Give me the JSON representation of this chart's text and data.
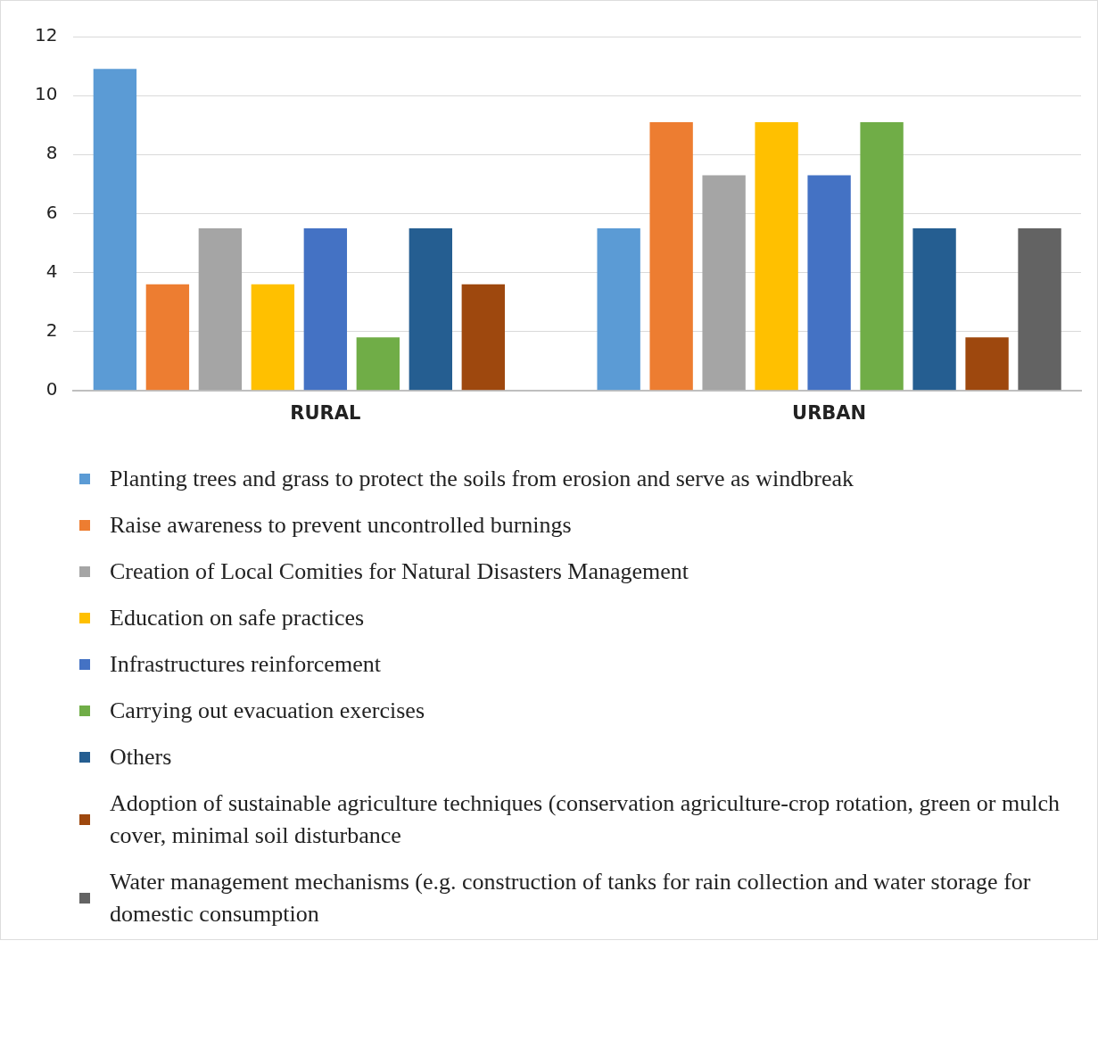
{
  "chart_data": {
    "type": "bar",
    "categories": [
      "RURAL",
      "URBAN"
    ],
    "series": [
      {
        "name": "Planting trees and grass to protect the soils from erosion and serve as windbreak",
        "color": "#5b9bd5",
        "values": [
          10.9,
          5.5
        ]
      },
      {
        "name": "Raise awareness to prevent uncontrolled burnings",
        "color": "#ed7d31",
        "values": [
          3.6,
          9.1
        ]
      },
      {
        "name": "Creation of Local Comities for Natural Disasters Management",
        "color": "#a5a5a5",
        "values": [
          5.5,
          7.3
        ]
      },
      {
        "name": "Education on safe practices",
        "color": "#ffc000",
        "values": [
          3.6,
          9.1
        ]
      },
      {
        "name": "Infrastructures reinforcement",
        "color": "#4472c4",
        "values": [
          5.5,
          7.3
        ]
      },
      {
        "name": "Carrying out evacuation exercises",
        "color": "#70ad47",
        "values": [
          1.8,
          9.1
        ]
      },
      {
        "name": "Others",
        "color": "#255e91",
        "values": [
          5.5,
          5.5
        ]
      },
      {
        "name": "Adoption of sustainable agriculture techniques (conservation agriculture-crop rotation, green or mulch cover, minimal soil disturbance",
        "color": "#9e480e",
        "values": [
          3.6,
          1.8
        ]
      },
      {
        "name": "Water management mechanisms (e.g. construction of tanks for rain collection and water storage for domestic consumption",
        "color": "#636363",
        "values": [
          null,
          5.5
        ]
      }
    ],
    "ylim": [
      0,
      12
    ],
    "yticks": [
      0,
      2,
      4,
      6,
      8,
      10,
      12
    ],
    "grid": "y",
    "legend": "bottom"
  }
}
